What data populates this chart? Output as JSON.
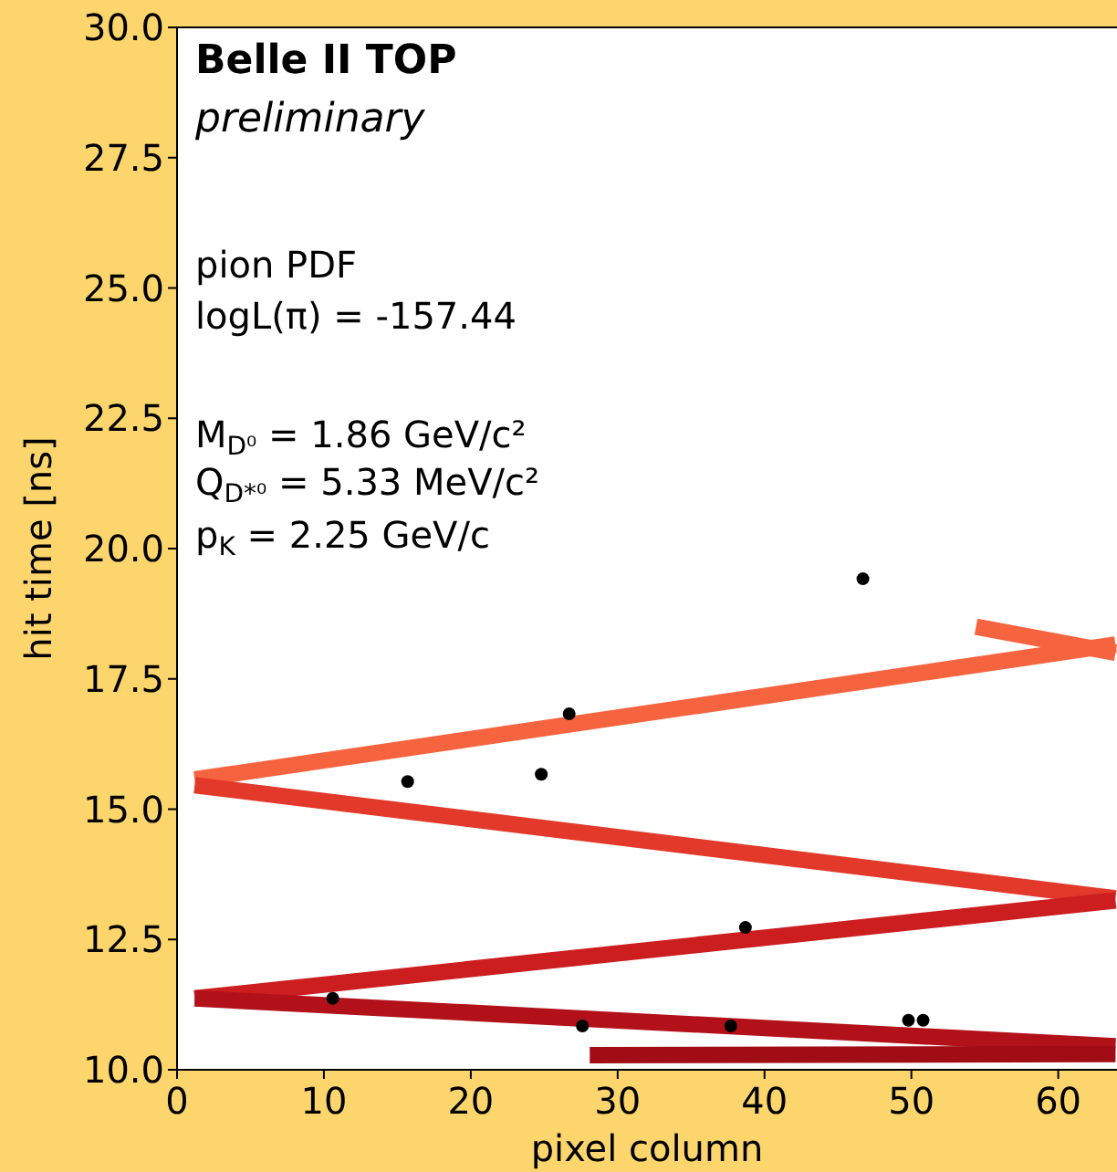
{
  "chart_data": {
    "type": "scatter",
    "xlabel": "pixel column",
    "ylabel": "hit time [ns]",
    "xlim": [
      0,
      64
    ],
    "ylim": [
      10,
      30
    ],
    "xticks": [
      0,
      10,
      20,
      30,
      40,
      50,
      60
    ],
    "yticks": [
      {
        "value": 10,
        "label": "10.0"
      },
      {
        "value": 12.5,
        "label": "12.5"
      },
      {
        "value": 15,
        "label": "15.0"
      },
      {
        "value": 17.5,
        "label": "17.5"
      },
      {
        "value": 20,
        "label": "20.0"
      },
      {
        "value": 22.5,
        "label": "22.5"
      },
      {
        "value": 25,
        "label": "25.0"
      },
      {
        "value": 27.5,
        "label": "27.5"
      },
      {
        "value": 30,
        "label": "30.0"
      }
    ],
    "grid": false,
    "annotations": [
      "Belle II TOP",
      "preliminary",
      "pion PDF",
      "logL(π) = -157.44",
      "M$_{D⁰}$ = 1.86 GeV/c²",
      "Q$_{D*⁰}$ = 5.33 MeV/c²",
      "p$_{K}$ = 2.25 GeV/c"
    ],
    "series": [
      {
        "type": "line",
        "color": "#f6643f",
        "x": [
          1.2,
          63.9
        ],
        "values": [
          15.57,
          18.16
        ]
      },
      {
        "type": "line",
        "color": "#f6643f",
        "x": [
          54.4,
          63.9
        ],
        "values": [
          18.5,
          18.0
        ]
      },
      {
        "type": "line",
        "color": "#e2392a",
        "x": [
          1.2,
          63.9
        ],
        "values": [
          15.46,
          13.29
        ]
      },
      {
        "type": "line",
        "color": "#cc1d1f",
        "x": [
          63.9,
          1.2
        ],
        "values": [
          13.25,
          11.37
        ]
      },
      {
        "type": "line",
        "color": "#b3111a",
        "x": [
          1.2,
          63.9
        ],
        "values": [
          11.37,
          10.45
        ]
      },
      {
        "type": "line",
        "color": "#a00d15",
        "x": [
          28.1,
          63.9
        ],
        "values": [
          10.28,
          10.3
        ]
      },
      {
        "color": "#000000",
        "marker": "circle",
        "x": [
          10.6,
          15.7,
          24.8,
          26.7,
          27.6,
          37.7,
          38.7,
          46.7,
          49.8,
          50.8
        ],
        "values": [
          11.37,
          15.53,
          15.67,
          16.83,
          10.84,
          10.84,
          12.73,
          19.42,
          10.95,
          10.95
        ]
      }
    ]
  }
}
